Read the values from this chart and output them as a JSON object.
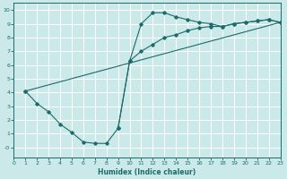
{
  "xlabel": "Humidex (Indice chaleur)",
  "xlim": [
    0,
    23
  ],
  "ylim": [
    -0.7,
    10.5
  ],
  "xticks": [
    0,
    1,
    2,
    3,
    4,
    5,
    6,
    7,
    8,
    9,
    10,
    11,
    12,
    13,
    14,
    15,
    16,
    17,
    18,
    19,
    20,
    21,
    22,
    23
  ],
  "yticks": [
    0,
    1,
    2,
    3,
    4,
    5,
    6,
    7,
    8,
    9,
    10
  ],
  "ytick_labels": [
    "-0",
    "1",
    "2",
    "3",
    "4",
    "5",
    "6",
    "7",
    "8",
    "9",
    "10"
  ],
  "bg_color": "#cce9e9",
  "line_color": "#1a6b6b",
  "grid_color": "#ffffff",
  "line1_x": [
    1,
    2,
    3,
    4,
    5,
    6,
    7,
    8,
    9,
    10,
    11,
    12,
    13,
    14,
    15,
    16,
    17,
    18,
    19,
    20,
    21,
    22,
    23
  ],
  "line1_y": [
    4.1,
    3.2,
    2.6,
    1.7,
    1.1,
    0.4,
    0.3,
    0.3,
    1.4,
    6.3,
    9.0,
    9.8,
    9.8,
    9.5,
    9.3,
    9.1,
    9.0,
    8.8,
    9.0,
    9.1,
    9.2,
    9.3,
    9.1
  ],
  "line2_x": [
    9,
    10,
    11,
    12,
    13,
    14,
    15,
    16,
    17,
    18,
    19,
    20,
    21,
    22,
    23
  ],
  "line2_y": [
    1.4,
    6.3,
    7.0,
    7.5,
    8.0,
    8.2,
    8.5,
    8.7,
    8.8,
    8.8,
    9.0,
    9.1,
    9.2,
    9.3,
    9.1
  ],
  "line3_x": [
    1,
    23
  ],
  "line3_y": [
    4.1,
    9.1
  ]
}
